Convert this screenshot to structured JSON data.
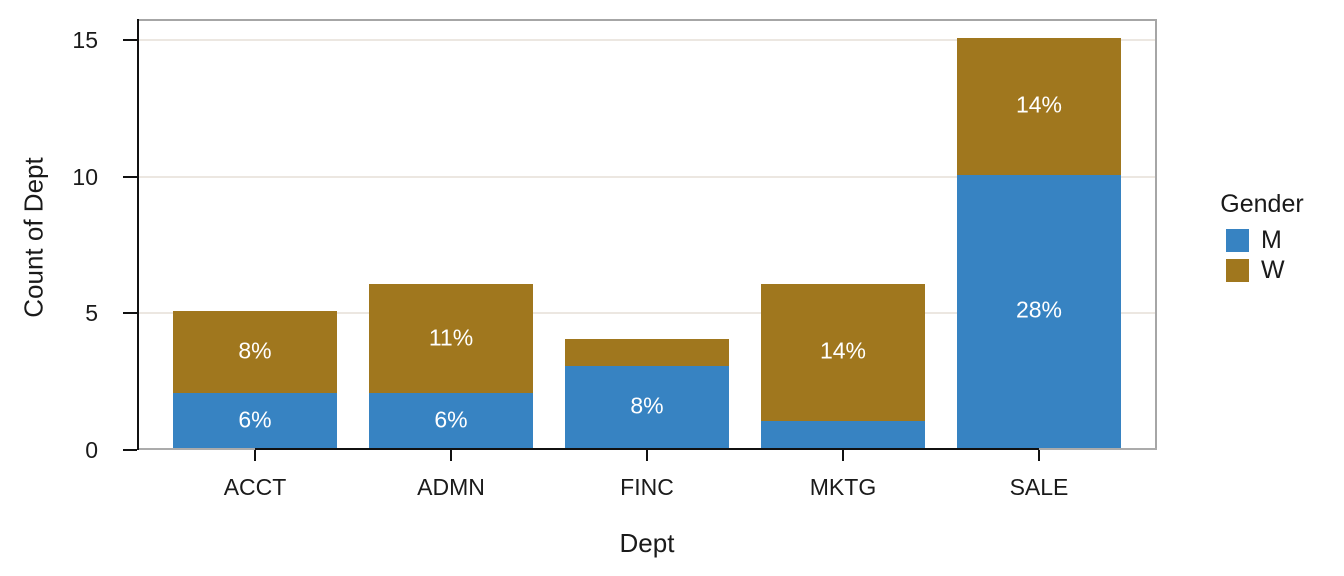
{
  "chart_data": {
    "type": "bar",
    "stacked": true,
    "title": "",
    "xlabel": "Dept",
    "ylabel": "Count of Dept",
    "categories": [
      "ACCT",
      "ADMN",
      "FINC",
      "MKTG",
      "SALE"
    ],
    "series": [
      {
        "name": "M",
        "color": "#3783C2",
        "values": [
          2,
          2,
          3,
          1,
          10
        ],
        "labels": [
          "6%",
          "6%",
          "8%",
          "",
          "28%"
        ]
      },
      {
        "name": "W",
        "color": "#A0771E",
        "values": [
          3,
          4,
          1,
          5,
          5
        ],
        "labels": [
          "8%",
          "11%",
          "",
          "14%",
          "14%"
        ]
      }
    ],
    "totals": [
      5,
      6,
      4,
      6,
      15
    ],
    "y_ticks": [
      0,
      5,
      10,
      15
    ],
    "ylim": [
      0,
      15.77
    ],
    "grid": true,
    "legend": {
      "title": "Gender",
      "position": "right"
    },
    "colors": {
      "grid": "#ECE7E1",
      "axis": "#111111",
      "panel_border": "#A6A6A6",
      "baseline": "#ABABAB",
      "tick_text": "#1A1A1A",
      "bar_label_text": "#FFFFFF"
    }
  }
}
